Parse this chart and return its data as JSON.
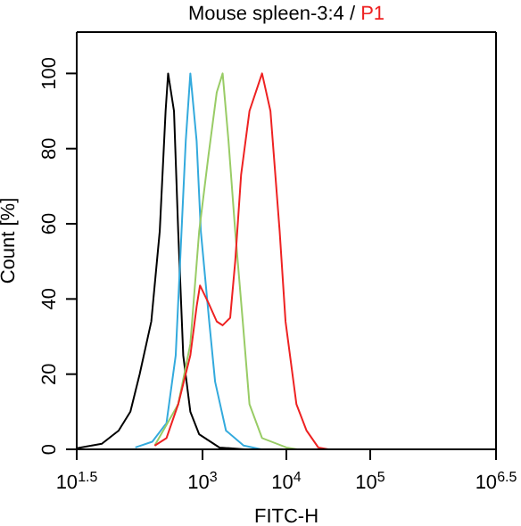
{
  "chart_data": {
    "type": "line",
    "title": "Mouse spleen-3:4 / P1",
    "xlabel": "FITC-H",
    "ylabel": "Count [%]",
    "log": "x",
    "marker": "none",
    "line_style": "solid",
    "xlim": [
      31.62,
      3162000
    ],
    "xticks": [
      {
        "value": 31.62,
        "label": "10$^{1.5}$"
      },
      {
        "value": 1000,
        "label": "10$^{3}$"
      },
      {
        "value": 10000,
        "label": "10$^{4}$"
      },
      {
        "value": 100000,
        "label": "10$^{5}$"
      },
      {
        "value": 3162000,
        "label": "10$^{6.5}$"
      }
    ],
    "ylim": [
      0,
      111
    ],
    "yticks": [
      0,
      20,
      40,
      60,
      80,
      100
    ],
    "series": [
      {
        "color": "#000000",
        "x": [
          31.62,
          63,
          100,
          138,
          178,
          245,
          309,
          363,
          389,
          457,
          513,
          589,
          716,
          912,
          1585,
          3162
        ],
        "values": [
          0.3,
          1.5,
          5,
          10,
          20,
          34,
          58,
          90,
          100,
          90,
          58,
          25,
          10,
          4,
          0.5,
          0
        ]
      },
      {
        "color": "#33aadd",
        "x": [
          158,
          251,
          372,
          479,
          562,
          631,
          716,
          851,
          955,
          1202,
          1413,
          1905,
          3090,
          5012
        ],
        "values": [
          0.5,
          2,
          7,
          25,
          58,
          82,
          100,
          82,
          58,
          34,
          18,
          5,
          1,
          0
        ]
      },
      {
        "color": "#99cc66",
        "x": [
          269,
          513,
          716,
          912,
          1175,
          1479,
          1738,
          2042,
          2455,
          3020,
          3631,
          5129,
          10000,
          13490
        ],
        "values": [
          1,
          12,
          28,
          58,
          78,
          95,
          100,
          82,
          58,
          34,
          12,
          3,
          0.5,
          0
        ]
      },
      {
        "color": "#ee2222",
        "x": [
          269,
          372,
          513,
          716,
          851,
          933,
          1175,
          1479,
          1738,
          2138,
          2455,
          2884,
          3631,
          5129,
          6457,
          8318,
          9772,
          13180,
          17380,
          23990,
          31620
        ],
        "values": [
          1,
          3,
          12,
          25,
          38,
          43.6,
          39,
          34,
          33,
          35,
          50,
          73,
          90,
          100,
          90,
          58,
          34,
          12,
          5,
          0.5,
          0
        ]
      }
    ]
  }
}
